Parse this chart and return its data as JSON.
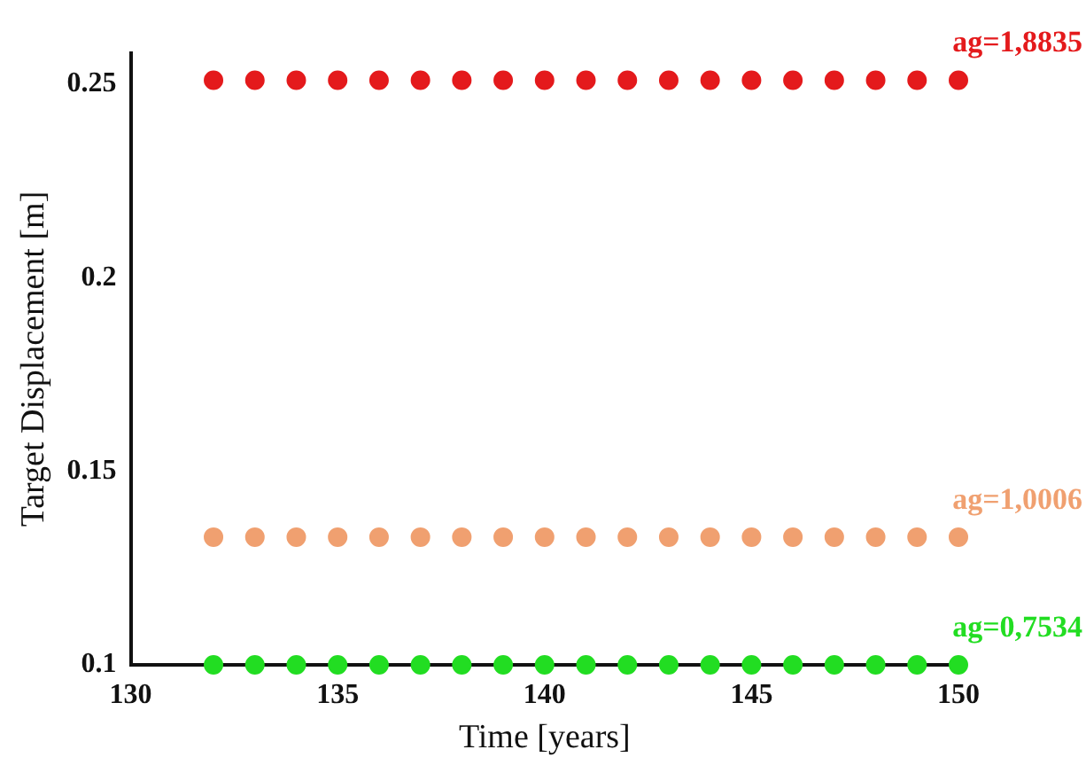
{
  "chart_data": {
    "type": "scatter",
    "xlabel": "Time [years]",
    "ylabel": "Target Displacement [m]",
    "x": [
      132,
      133,
      134,
      135,
      136,
      137,
      138,
      139,
      140,
      141,
      142,
      143,
      144,
      145,
      146,
      147,
      148,
      149,
      150
    ],
    "series": [
      {
        "name": "ag=1,8835",
        "color": "#e41a1c",
        "values": [
          0.251,
          0.251,
          0.251,
          0.251,
          0.251,
          0.251,
          0.251,
          0.251,
          0.251,
          0.251,
          0.251,
          0.251,
          0.251,
          0.251,
          0.251,
          0.251,
          0.251,
          0.251,
          0.251
        ]
      },
      {
        "name": "ag=1,0006",
        "color": "#f0a070",
        "values": [
          0.133,
          0.133,
          0.133,
          0.133,
          0.133,
          0.133,
          0.133,
          0.133,
          0.133,
          0.133,
          0.133,
          0.133,
          0.133,
          0.133,
          0.133,
          0.133,
          0.133,
          0.133,
          0.133
        ]
      },
      {
        "name": "ag=0,7534",
        "color": "#22dd22",
        "values": [
          0.1,
          0.1,
          0.1,
          0.1,
          0.1,
          0.1,
          0.1,
          0.1,
          0.1,
          0.1,
          0.1,
          0.1,
          0.1,
          0.1,
          0.1,
          0.1,
          0.1,
          0.1,
          0.1
        ]
      }
    ],
    "xlim": [
      130,
      150
    ],
    "xticks": [
      130,
      135,
      140,
      145,
      150
    ],
    "ylim": [
      0.1,
      0.258
    ],
    "yticks": [
      0.1,
      0.15,
      0.2,
      0.25
    ],
    "grid": false,
    "legend": false,
    "marker": "circle"
  }
}
